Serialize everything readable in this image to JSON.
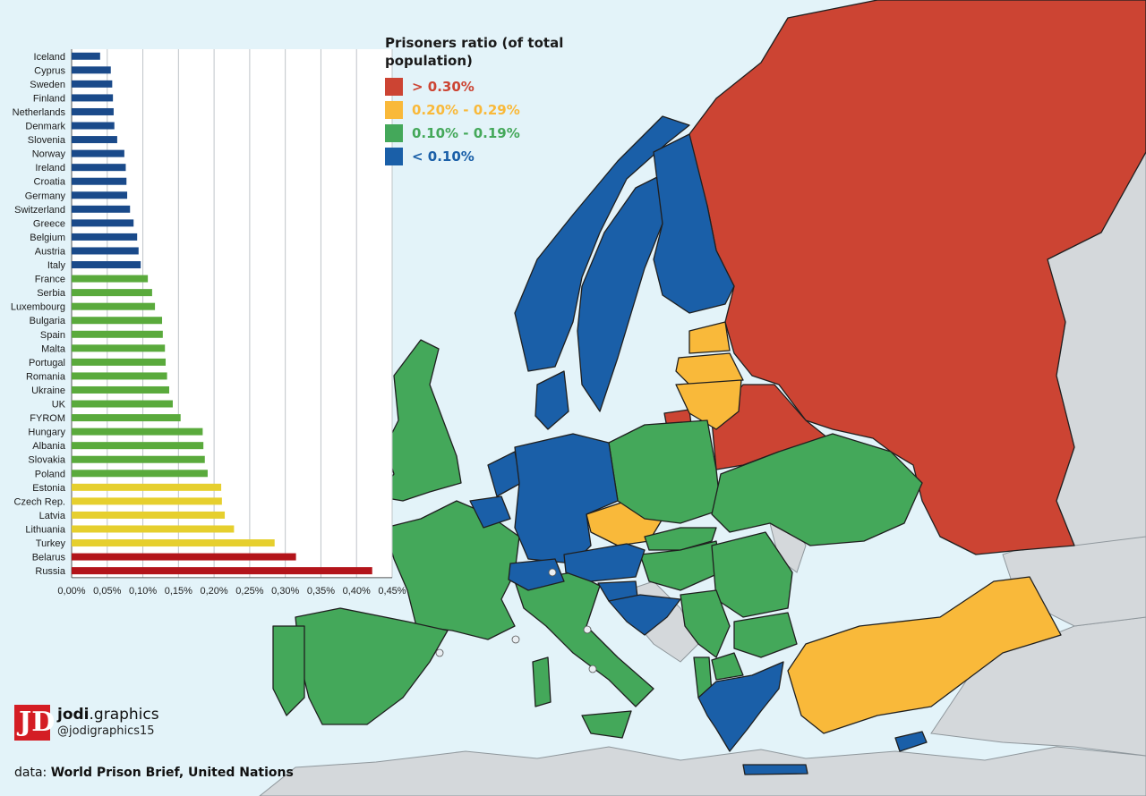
{
  "legend": {
    "title": "Prisoners ratio (of total population)",
    "items": [
      {
        "label": "> 0.30%",
        "color": "#cc4433"
      },
      {
        "label": "0.20% - 0.29%",
        "color": "#f9b93a"
      },
      {
        "label": "0.10% - 0.19%",
        "color": "#44a85a"
      },
      {
        "label": "< 0.10%",
        "color": "#1a5fa8"
      }
    ]
  },
  "chart_data": {
    "type": "bar",
    "orientation": "horizontal",
    "categories": [
      "Iceland",
      "Cyprus",
      "Sweden",
      "Finland",
      "Netherlands",
      "Denmark",
      "Slovenia",
      "Norway",
      "Ireland",
      "Croatia",
      "Germany",
      "Switzerland",
      "Greece",
      "Belgium",
      "Austria",
      "Italy",
      "France",
      "Serbia",
      "Luxembourg",
      "Bulgaria",
      "Spain",
      "Malta",
      "Portugal",
      "Romania",
      "Ukraine",
      "UK",
      "FYROM",
      "Hungary",
      "Albania",
      "Slovakia",
      "Poland",
      "Estonia",
      "Czech Rep.",
      "Latvia",
      "Lithuania",
      "Turkey",
      "Belarus",
      "Russia"
    ],
    "values": [
      0.04,
      0.055,
      0.057,
      0.058,
      0.059,
      0.06,
      0.064,
      0.074,
      0.076,
      0.077,
      0.078,
      0.082,
      0.087,
      0.092,
      0.094,
      0.097,
      0.107,
      0.113,
      0.117,
      0.127,
      0.128,
      0.131,
      0.132,
      0.134,
      0.137,
      0.142,
      0.153,
      0.184,
      0.185,
      0.187,
      0.191,
      0.21,
      0.211,
      0.215,
      0.228,
      0.285,
      0.315,
      0.422
    ],
    "colors": [
      "#1a4a8a",
      "#1a4a8a",
      "#1a4a8a",
      "#1a4a8a",
      "#1a4a8a",
      "#1a4a8a",
      "#1a4a8a",
      "#1a4a8a",
      "#1a4a8a",
      "#1a4a8a",
      "#1a4a8a",
      "#1a4a8a",
      "#1a4a8a",
      "#1a4a8a",
      "#1a4a8a",
      "#1a4a8a",
      "#5aaa3c",
      "#5aaa3c",
      "#5aaa3c",
      "#5aaa3c",
      "#5aaa3c",
      "#5aaa3c",
      "#5aaa3c",
      "#5aaa3c",
      "#5aaa3c",
      "#5aaa3c",
      "#5aaa3c",
      "#5aaa3c",
      "#5aaa3c",
      "#5aaa3c",
      "#5aaa3c",
      "#e6cf2e",
      "#e6cf2e",
      "#e6cf2e",
      "#e6cf2e",
      "#e6cf2e",
      "#b3141a",
      "#b3141a"
    ],
    "xlim": [
      0,
      0.45
    ],
    "ticks": [
      "0,00%",
      "0,05%",
      "0,10%",
      "0,15%",
      "0,20%",
      "0,25%",
      "0,30%",
      "0,35%",
      "0,40%",
      "0,45%"
    ],
    "grid": true
  },
  "brand": {
    "logo_letters": "JD",
    "name_bold": "jodi",
    "name_rest": ".graphics",
    "handle": "@jodigraphics15"
  },
  "source": {
    "prefix": "data: ",
    "text": "World Prison Brief, United Nations"
  },
  "colors": {
    "sea": "#e3f3f9",
    "non_data_land": "#d4d8db"
  }
}
